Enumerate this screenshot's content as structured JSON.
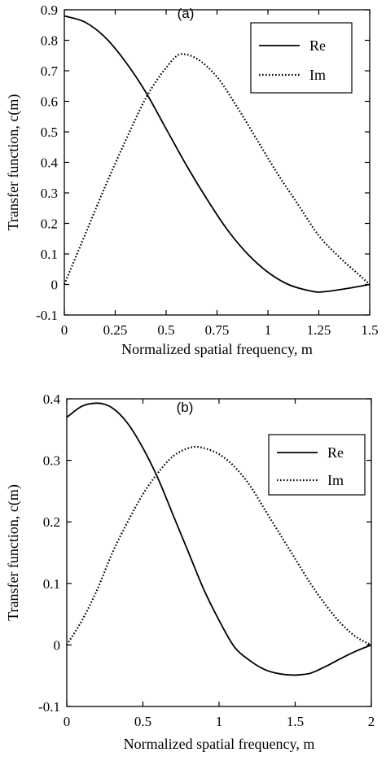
{
  "chart_data": [
    {
      "type": "line",
      "panel_label": "(a)",
      "xlabel": "Normalized spatial frequency, m",
      "ylabel": "Transfer function, c(m)",
      "xlim": [
        0,
        1.5
      ],
      "ylim": [
        -0.1,
        0.9
      ],
      "x_ticks": [
        0,
        0.25,
        0.5,
        0.75,
        1,
        1.25,
        1.5
      ],
      "x_tick_labels": [
        "0",
        "0.25",
        "0.5",
        "0.75",
        "1",
        "1.25",
        "1.5"
      ],
      "y_ticks": [
        -0.1,
        0,
        0.1,
        0.2,
        0.3,
        0.4,
        0.5,
        0.6,
        0.7,
        0.8,
        0.9
      ],
      "y_tick_labels": [
        "-0.1",
        "0",
        "0.1",
        "0.2",
        "0.3",
        "0.4",
        "0.5",
        "0.6",
        "0.7",
        "0.8",
        "0.9"
      ],
      "grid": false,
      "legend_position": "top-right",
      "series": [
        {
          "name": "Re",
          "style": "solid",
          "x": [
            0,
            0.1,
            0.2,
            0.3,
            0.4,
            0.5,
            0.6,
            0.7,
            0.8,
            0.9,
            1.0,
            1.1,
            1.2,
            1.25,
            1.3,
            1.4,
            1.5
          ],
          "y": [
            0.88,
            0.86,
            0.81,
            0.73,
            0.63,
            0.51,
            0.39,
            0.28,
            0.18,
            0.1,
            0.04,
            0.0,
            -0.02,
            -0.025,
            -0.022,
            -0.012,
            0.0
          ]
        },
        {
          "name": "Im",
          "style": "dotted",
          "x": [
            0,
            0.1,
            0.2,
            0.3,
            0.4,
            0.5,
            0.575,
            0.65,
            0.75,
            0.85,
            0.95,
            1.05,
            1.15,
            1.25,
            1.35,
            1.45,
            1.5
          ],
          "y": [
            0.0,
            0.16,
            0.32,
            0.47,
            0.61,
            0.71,
            0.755,
            0.74,
            0.68,
            0.58,
            0.47,
            0.36,
            0.26,
            0.16,
            0.09,
            0.03,
            0.0
          ]
        }
      ]
    },
    {
      "type": "line",
      "panel_label": "(b)",
      "xlabel": "Normalized spatial frequency, m",
      "ylabel": "Transfer function, c(m)",
      "xlim": [
        0,
        2
      ],
      "ylim": [
        -0.1,
        0.4
      ],
      "x_ticks": [
        0,
        0.5,
        1,
        1.5,
        2
      ],
      "x_tick_labels": [
        "0",
        "0.5",
        "1",
        "1.5",
        "2"
      ],
      "y_ticks": [
        -0.1,
        0,
        0.1,
        0.2,
        0.3,
        0.4
      ],
      "y_tick_labels": [
        "-0.1",
        "0",
        "0.1",
        "0.2",
        "0.3",
        "0.4"
      ],
      "grid": false,
      "legend_position": "top-right",
      "series": [
        {
          "name": "Re",
          "style": "solid",
          "x": [
            0,
            0.1,
            0.2,
            0.3,
            0.4,
            0.5,
            0.6,
            0.7,
            0.8,
            0.9,
            1.0,
            1.1,
            1.2,
            1.3,
            1.4,
            1.5,
            1.55,
            1.6,
            1.7,
            1.8,
            1.9,
            2.0
          ],
          "y": [
            0.37,
            0.388,
            0.393,
            0.385,
            0.36,
            0.32,
            0.27,
            0.21,
            0.15,
            0.09,
            0.04,
            -0.003,
            -0.025,
            -0.04,
            -0.047,
            -0.049,
            -0.048,
            -0.046,
            -0.035,
            -0.022,
            -0.01,
            0.0
          ]
        },
        {
          "name": "Im",
          "style": "dotted",
          "x": [
            0,
            0.1,
            0.2,
            0.3,
            0.4,
            0.5,
            0.6,
            0.7,
            0.8,
            0.85,
            0.9,
            1.0,
            1.1,
            1.2,
            1.3,
            1.4,
            1.5,
            1.6,
            1.7,
            1.8,
            1.9,
            2.0
          ],
          "y": [
            0.0,
            0.04,
            0.09,
            0.15,
            0.2,
            0.245,
            0.28,
            0.307,
            0.32,
            0.322,
            0.32,
            0.31,
            0.29,
            0.26,
            0.22,
            0.18,
            0.14,
            0.1,
            0.065,
            0.035,
            0.013,
            0.0
          ]
        }
      ]
    }
  ]
}
